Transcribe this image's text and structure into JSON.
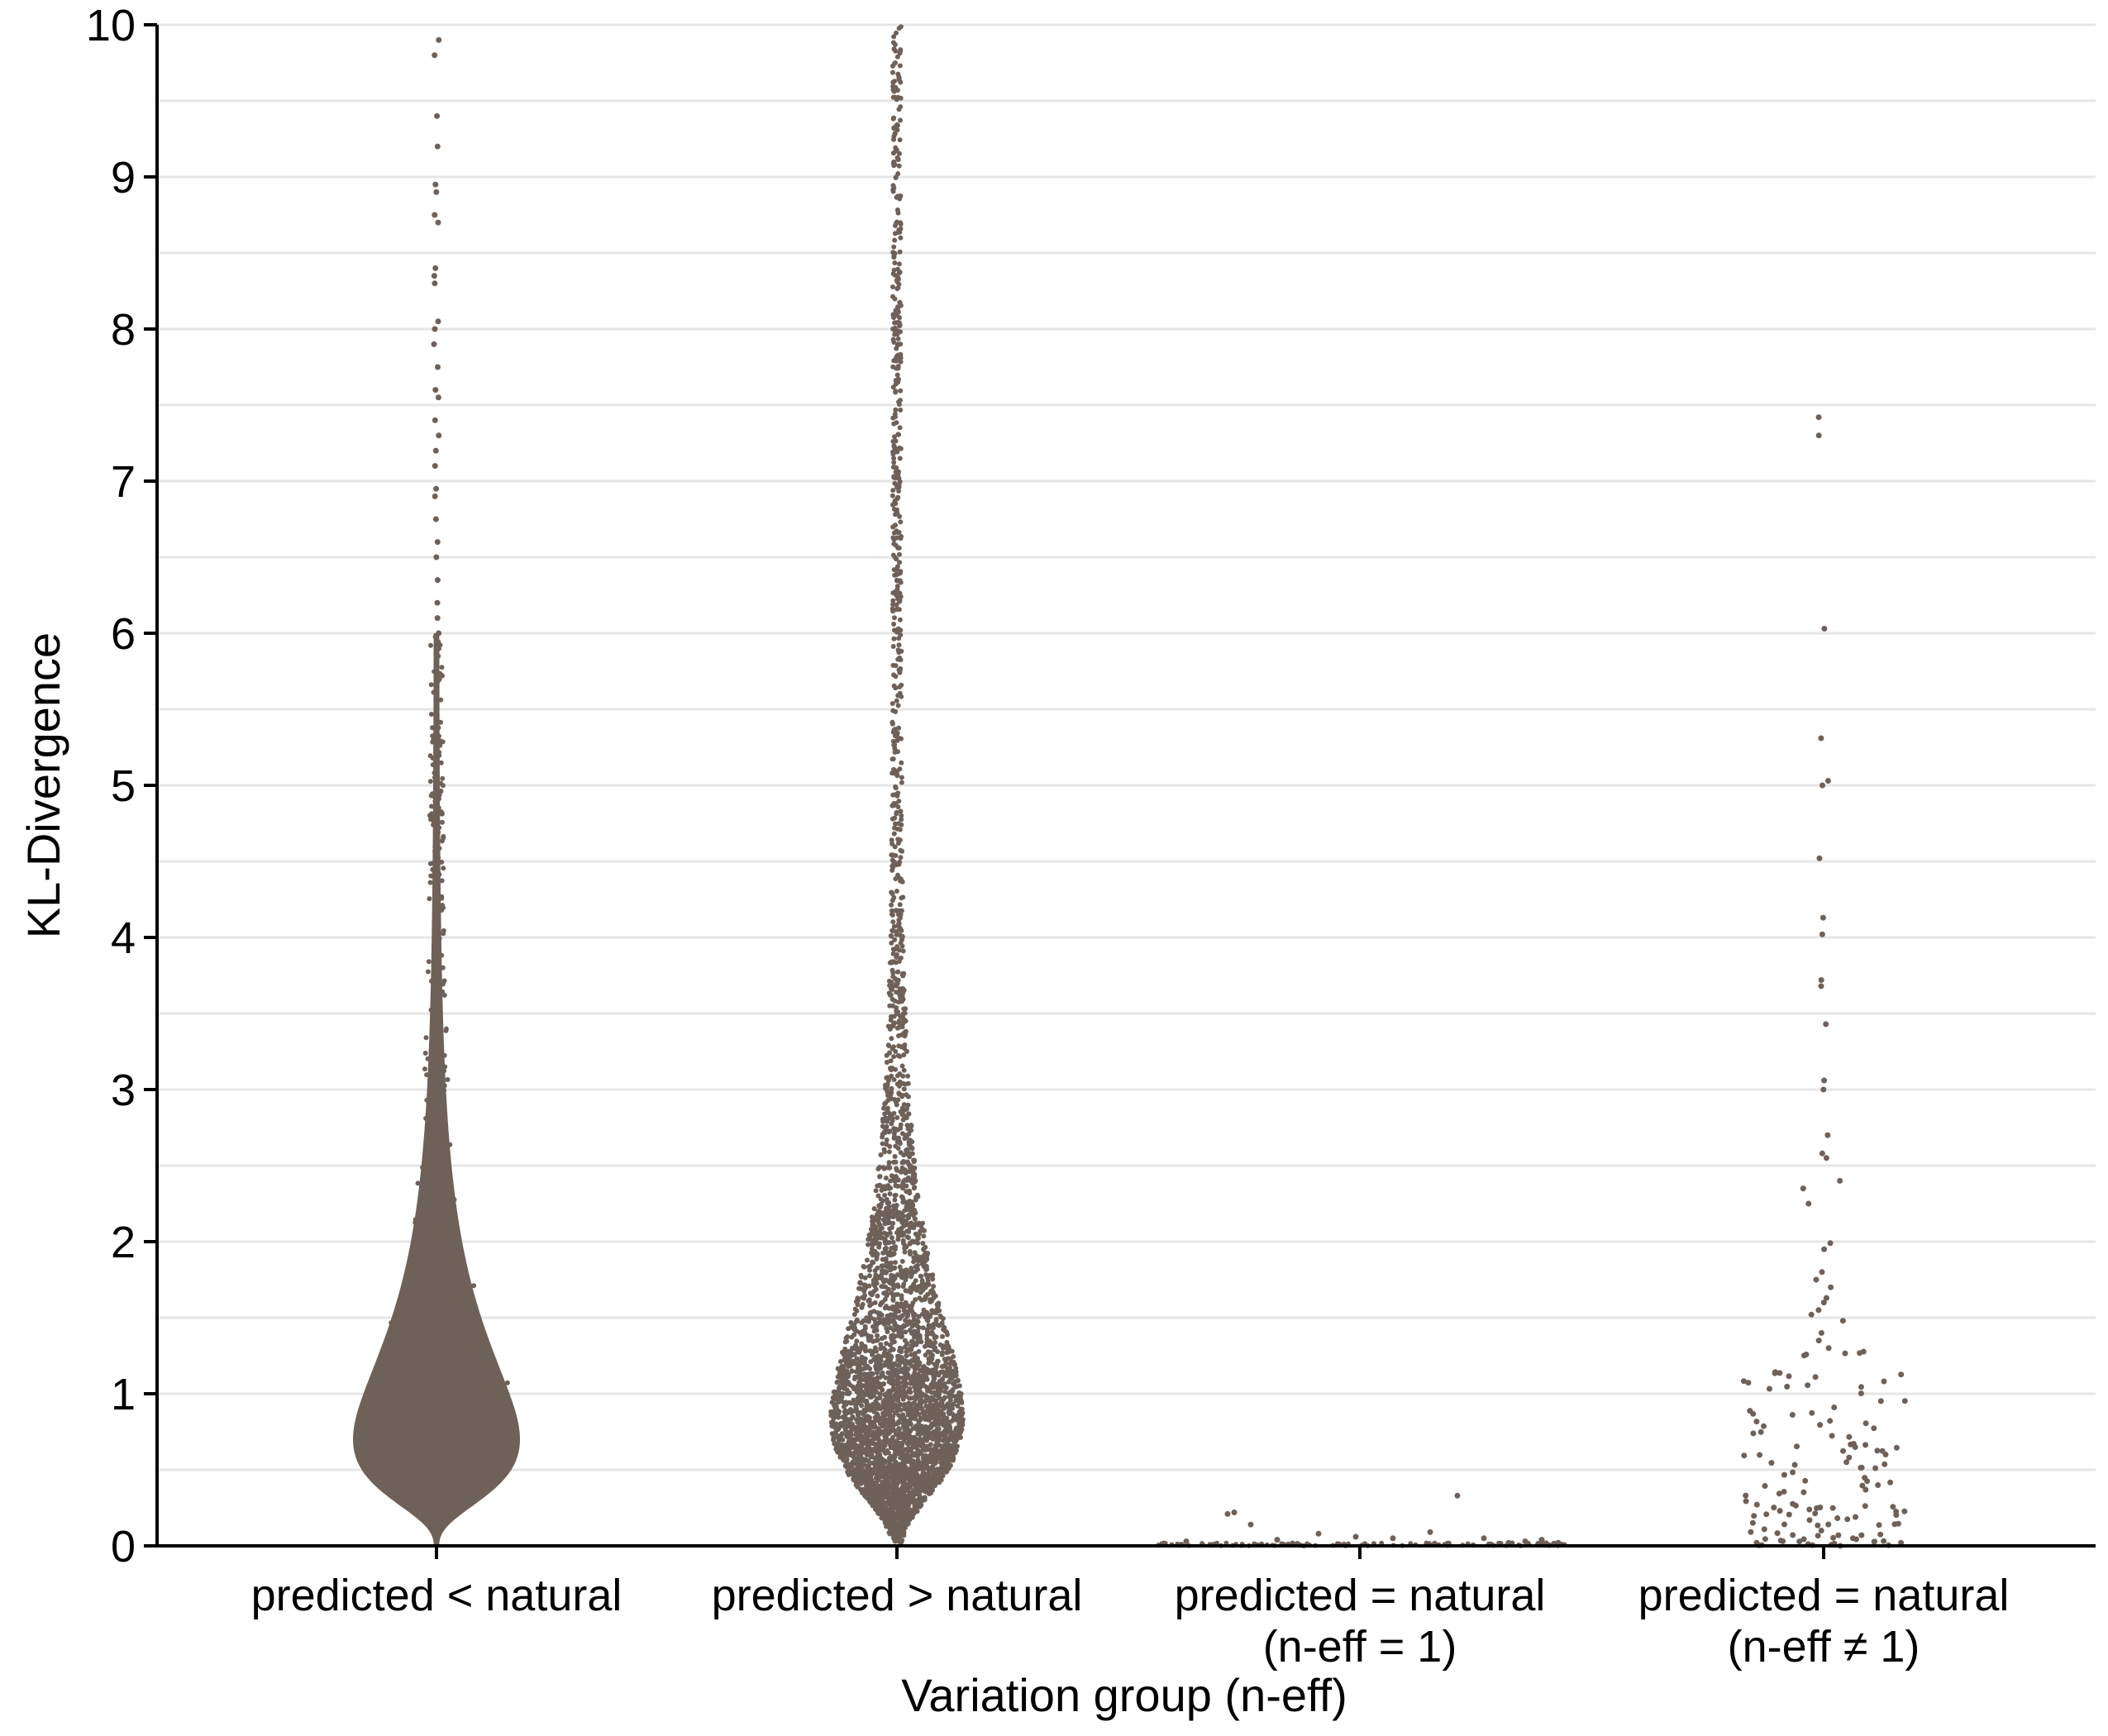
{
  "chart_data": {
    "type": "scatter",
    "subtype": "beeswarm",
    "xlabel": "Variation group (n-eff)",
    "ylabel": "KL-Divergence",
    "ylim": [
      0,
      10
    ],
    "y_ticks": [
      0,
      1,
      2,
      3,
      4,
      5,
      6,
      7,
      8,
      9,
      10
    ],
    "grid": "horizontal major and minor lines every 0.5",
    "point_color": "#6e6159",
    "categories": [
      {
        "label_lines": [
          "predicted < natural"
        ],
        "shape": "dense teardrop, densest near 0.7, tail to 9.9",
        "median_approx": 0.85,
        "max": 9.9,
        "outlier_points_y": [
          9.9,
          9.8,
          9.4,
          9.2,
          8.95,
          8.9,
          8.75,
          8.7,
          8.4,
          8.35,
          8.3,
          8.05,
          8.0,
          7.9,
          7.75,
          7.6,
          7.55,
          7.4,
          7.3,
          7.2,
          7.1,
          6.95,
          6.9,
          6.75,
          6.6,
          6.5,
          6.35,
          6.2,
          6.1,
          6.0,
          5.85
        ]
      },
      {
        "label_lines": [
          "predicted > natural"
        ],
        "shape": "widest near 0.9, sparse tail up to 10",
        "median_approx": 1.2,
        "max": 10.0
      },
      {
        "label_lines": [
          "predicted = natural",
          "(n-eff = 1)"
        ],
        "shape": "points clustered at 0",
        "points_above_zero_y": [
          0.22,
          0.21,
          0.14,
          0.08,
          0.06,
          0.33,
          0.09,
          0.05,
          0.04,
          0.03,
          0.02,
          0.02,
          0.03,
          0.04,
          0.05
        ]
      },
      {
        "label_lines": [
          "predicted = natural",
          "(n-eff ≠ 1)"
        ],
        "shape": "sparse cloud",
        "outlier_points_y": [
          7.42,
          7.3,
          6.03,
          5.31,
          5.03,
          5.0,
          4.52,
          4.13,
          4.02,
          3.72,
          3.68,
          3.43,
          3.06,
          3.0,
          2.7,
          2.58,
          2.55,
          2.4,
          2.35,
          2.25,
          1.99,
          1.95,
          1.8,
          1.75,
          1.7,
          1.63,
          1.6,
          1.55,
          1.52,
          1.48,
          1.4,
          1.35,
          1.3
        ]
      }
    ]
  }
}
